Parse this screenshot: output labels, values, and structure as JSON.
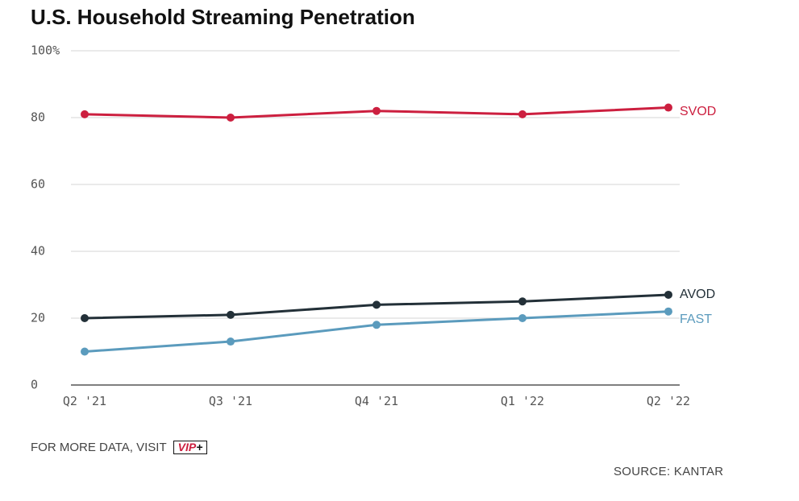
{
  "chart_data": {
    "type": "line",
    "title": "U.S. Household Streaming Penetration",
    "xlabel": "",
    "ylabel": "",
    "categories": [
      "Q2 '21",
      "Q3 '21",
      "Q4 '21",
      "Q1 '22",
      "Q2 '22"
    ],
    "ylim": [
      0,
      100
    ],
    "yticks": [
      "100%",
      "80",
      "60",
      "40",
      "20",
      "0"
    ],
    "grid": true,
    "legend": "inline-right",
    "series": [
      {
        "name": "SVOD",
        "values": [
          81,
          80,
          82,
          81,
          83
        ],
        "color": "#cc1f3f"
      },
      {
        "name": "AVOD",
        "values": [
          20,
          21,
          24,
          25,
          27
        ],
        "color": "#233038"
      },
      {
        "name": "FAST",
        "values": [
          10,
          13,
          18,
          20,
          22
        ],
        "color": "#5b9bbd"
      }
    ]
  },
  "footer": {
    "more_data": "FOR MORE DATA, VISIT",
    "vip_text": "VIP",
    "vip_plus": "+",
    "source": "SOURCE: KANTAR"
  }
}
